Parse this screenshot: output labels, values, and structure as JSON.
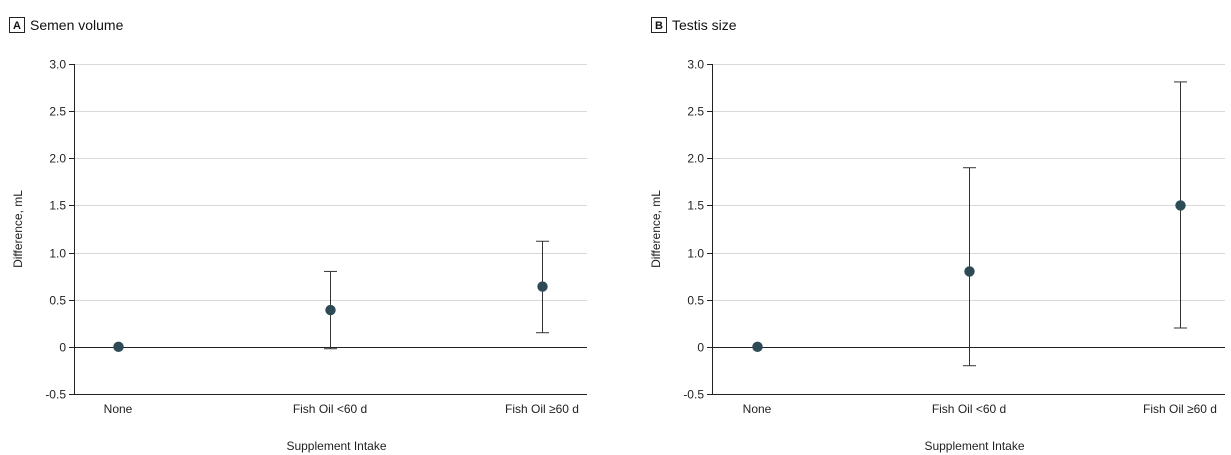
{
  "colors": {
    "point": "#2e4a57",
    "grid": "#d9d9d9",
    "axis": "#222222"
  },
  "chart_data": [
    {
      "type": "scatter",
      "panel": "A",
      "title": "Semen volume",
      "xlabel": "Supplement Intake",
      "ylabel": "Difference, mL",
      "ylim": [
        -0.5,
        3.0
      ],
      "yticks": [
        3.0,
        2.5,
        2.0,
        1.5,
        1.0,
        0.5,
        0,
        -0.5
      ],
      "ytick_labels": [
        "3.0",
        "2.5",
        "2.0",
        "1.5",
        "1.0",
        "0.5",
        "0",
        "-0.5"
      ],
      "categories": [
        "None",
        "Fish Oil <60 d",
        "Fish Oil ≥60 d"
      ],
      "values": [
        0,
        0.39,
        0.64
      ],
      "ci_lower": [
        null,
        -0.02,
        0.15
      ],
      "ci_upper": [
        null,
        0.8,
        1.12
      ],
      "grid": true
    },
    {
      "type": "scatter",
      "panel": "B",
      "title": "Testis size",
      "xlabel": "Supplement Intake",
      "ylabel": "Difference, mL",
      "ylim": [
        -0.5,
        3.0
      ],
      "yticks": [
        3.0,
        2.5,
        2.0,
        1.5,
        1.0,
        0.5,
        0,
        -0.5
      ],
      "ytick_labels": [
        "3.0",
        "2.5",
        "2.0",
        "1.5",
        "1.0",
        "0.5",
        "0",
        "-0.5"
      ],
      "categories": [
        "None",
        "Fish Oil <60 d",
        "Fish Oil ≥60 d"
      ],
      "values": [
        0,
        0.8,
        1.5
      ],
      "ci_lower": [
        null,
        -0.2,
        0.2
      ],
      "ci_upper": [
        null,
        1.9,
        2.81
      ],
      "grid": true
    }
  ]
}
